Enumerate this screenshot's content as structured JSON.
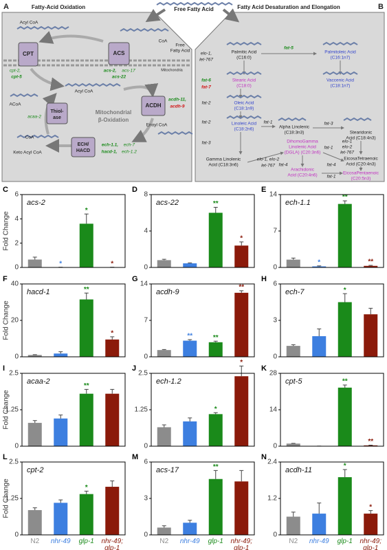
{
  "panel_a": {
    "letter": "A",
    "title": "Fatty-Acid Oxidation",
    "labels": [
      "Acyl CoA",
      "Free",
      "Fatty Acid",
      "CoA",
      "CPT",
      "ACS",
      "Mitochondria",
      "cpt-2,",
      "cpt-5",
      "acs-2,",
      "acs-17",
      "acs-22",
      "Acyl CoA",
      "ACoA",
      "ACDH",
      "acdh-11,",
      "acdh-9",
      "Thiol-",
      "ase",
      "acaa-2",
      "Mitochondrial",
      "β-Oxidation",
      "CoA",
      "Keto Acyl CoA",
      "ECH/",
      "HACD",
      "ech-1.1,",
      "ech-7",
      "hacd-1,",
      "ech-1.2",
      "Enoyl CoA"
    ]
  },
  "center_title": "Free Fatty Acid",
  "panel_b": {
    "letter": "B",
    "title": "Fatty Acid Desaturation and Elongation",
    "labels": [
      "elo-1,",
      "let-767",
      "Palmitic Acid",
      "(C16:0)",
      "fat-5",
      "Palmitoleic Acid",
      "(C16:1n7)",
      "fat-6",
      "fat-7",
      "Stearic Acid",
      "(C18:0)",
      "Vaccenic Acid",
      "(C18:1n7)",
      "fat-2",
      "Oleic Acid",
      "(C18:1n9)",
      "fat-2",
      "Linoleic Acid",
      "(C18:2n6)",
      "fat-1",
      "Alpha Linolenic",
      "(C18:3n3)",
      "fat-3",
      "Stearidonic",
      "Acid (C18:4n3)",
      "fat-3",
      "Gamma Linolenic",
      "Acid (C18:3n6)",
      "elo-1, elo-2",
      "let-767",
      "DihomoGamma",
      "Linolenic Acid",
      "(DGLA) (C20:3n6)",
      "fat-1",
      "elo-1",
      "elo-2",
      "let-767",
      "EicosaTetraenoic",
      "Acid (C20:4n3)",
      "fat-4",
      "fat-4",
      "Arachidonic",
      "Acid (C20:4n6)",
      "fat-1",
      "EicosaPentaenoic",
      "(C20:5n3)"
    ]
  },
  "chart_data": [
    {
      "type": "bar",
      "panel": "C",
      "title": "acs-2",
      "y_label": "Fold Change",
      "ylim": [
        0,
        6
      ],
      "yticks": [
        0,
        2,
        4,
        6
      ],
      "values": [
        0.65,
        0.02,
        3.6,
        0.02
      ],
      "errors": [
        0.2,
        0,
        0.8,
        0
      ],
      "stars": [
        null,
        "*",
        "*",
        "*"
      ],
      "colors": [
        "#8c8c8c",
        "#3d7fe0",
        "#1a8a1a",
        "#8b1a0a"
      ]
    },
    {
      "type": "bar",
      "panel": "D",
      "title": "acs-22",
      "ylim": [
        0,
        8
      ],
      "yticks": [
        0,
        4,
        8
      ],
      "values": [
        0.8,
        0.45,
        6.0,
        2.4
      ],
      "errors": [
        0.1,
        0.05,
        0.6,
        0.4
      ],
      "stars": [
        null,
        null,
        "**",
        "*"
      ],
      "colors": [
        "#8c8c8c",
        "#3d7fe0",
        "#1a8a1a",
        "#8b1a0a"
      ]
    },
    {
      "type": "bar",
      "panel": "E",
      "title": "ech-1.1",
      "ylim": [
        0,
        14
      ],
      "yticks": [
        0,
        7,
        14
      ],
      "values": [
        1.5,
        0.2,
        12.2,
        0.3
      ],
      "errors": [
        0.3,
        0.1,
        0.6,
        0.1
      ],
      "stars": [
        null,
        "*",
        "**",
        "**"
      ],
      "colors": [
        "#8c8c8c",
        "#3d7fe0",
        "#1a8a1a",
        "#8b1a0a"
      ]
    },
    {
      "type": "bar",
      "panel": "F",
      "title": "hacd-1",
      "y_label": "Fold Change",
      "ylim": [
        0,
        40
      ],
      "yticks": [
        0,
        20,
        40
      ],
      "values": [
        1.0,
        1.8,
        31.5,
        9.5
      ],
      "errors": [
        0.2,
        1.0,
        3.5,
        1.5
      ],
      "stars": [
        null,
        null,
        "**",
        "*"
      ],
      "colors": [
        "#8c8c8c",
        "#3d7fe0",
        "#1a8a1a",
        "#8b1a0a"
      ]
    },
    {
      "type": "bar",
      "panel": "G",
      "title": "acdh-9",
      "ylim": [
        0,
        14
      ],
      "yticks": [
        0,
        7,
        14
      ],
      "values": [
        1.3,
        3.1,
        2.8,
        12.3
      ],
      "errors": [
        0.1,
        0.2,
        0.2,
        0.4
      ],
      "stars": [
        null,
        "**",
        "**",
        "**"
      ],
      "colors": [
        "#8c8c8c",
        "#3d7fe0",
        "#1a8a1a",
        "#8b1a0a"
      ]
    },
    {
      "type": "bar",
      "panel": "H",
      "title": "ech-7",
      "ylim": [
        0,
        6
      ],
      "yticks": [
        0,
        3,
        6
      ],
      "values": [
        0.9,
        1.7,
        4.5,
        3.5
      ],
      "errors": [
        0.1,
        0.6,
        0.7,
        0.5
      ],
      "stars": [
        null,
        null,
        "*",
        null
      ],
      "colors": [
        "#8c8c8c",
        "#3d7fe0",
        "#1a8a1a",
        "#8b1a0a"
      ]
    },
    {
      "type": "bar",
      "panel": "I",
      "title": "acaa-2",
      "y_label": "Fold Change",
      "ylim": [
        0,
        2.5
      ],
      "yticks": [
        0,
        1.25,
        2.5
      ],
      "values": [
        0.8,
        0.95,
        1.8,
        1.8
      ],
      "errors": [
        0.08,
        0.12,
        0.15,
        0.15
      ],
      "stars": [
        null,
        null,
        "**",
        null
      ],
      "colors": [
        "#8c8c8c",
        "#3d7fe0",
        "#1a8a1a",
        "#8b1a0a"
      ]
    },
    {
      "type": "bar",
      "panel": "J",
      "title": "ech-1.2",
      "ylim": [
        0,
        2.5
      ],
      "yticks": [
        0,
        1.25,
        2.5
      ],
      "values": [
        0.65,
        0.85,
        1.1,
        2.4
      ],
      "errors": [
        0.08,
        0.12,
        0.05,
        0.35
      ],
      "stars": [
        null,
        null,
        "*",
        "*"
      ],
      "colors": [
        "#8c8c8c",
        "#3d7fe0",
        "#1a8a1a",
        "#8b1a0a"
      ]
    },
    {
      "type": "bar",
      "panel": "K",
      "title": "cpt-5",
      "ylim": [
        0,
        28
      ],
      "yticks": [
        0,
        14,
        28
      ],
      "values": [
        1.0,
        0.05,
        22.5,
        0.3
      ],
      "errors": [
        0.1,
        0,
        1.0,
        0.1
      ],
      "stars": [
        null,
        null,
        "**",
        "**"
      ],
      "colors": [
        "#8c8c8c",
        "#3d7fe0",
        "#1a8a1a",
        "#8b1a0a"
      ]
    },
    {
      "type": "bar",
      "panel": "L",
      "title": "cpt-2",
      "y_label": "Fold Change",
      "ylim": [
        0,
        2.5
      ],
      "yticks": [
        0,
        1.25,
        2.5
      ],
      "values": [
        0.85,
        1.1,
        1.4,
        1.65
      ],
      "errors": [
        0.08,
        0.1,
        0.1,
        0.2
      ],
      "stars": [
        null,
        null,
        "*",
        null
      ],
      "colors": [
        "#8c8c8c",
        "#3d7fe0",
        "#1a8a1a",
        "#8b1a0a"
      ],
      "categories": [
        "N2",
        "nhr-49",
        "glp-1",
        "nhr-49; glp-1"
      ]
    },
    {
      "type": "bar",
      "panel": "M",
      "title": "acs-17",
      "ylim": [
        0,
        6
      ],
      "yticks": [
        0,
        3,
        6
      ],
      "values": [
        0.6,
        1.0,
        4.6,
        4.4
      ],
      "errors": [
        0.15,
        0.2,
        0.7,
        0.9
      ],
      "stars": [
        null,
        null,
        "**",
        null
      ],
      "colors": [
        "#8c8c8c",
        "#3d7fe0",
        "#1a8a1a",
        "#8b1a0a"
      ],
      "categories": [
        "N2",
        "nhr-49",
        "glp-1",
        "nhr-49; glp-1"
      ]
    },
    {
      "type": "bar",
      "panel": "N",
      "title": "acdh-11",
      "ylim": [
        0,
        2.4
      ],
      "yticks": [
        0,
        1.2,
        2.4
      ],
      "values": [
        0.6,
        0.7,
        1.9,
        0.7
      ],
      "errors": [
        0.15,
        0.35,
        0.25,
        0.1
      ],
      "stars": [
        null,
        null,
        "*",
        "*"
      ],
      "colors": [
        "#8c8c8c",
        "#3d7fe0",
        "#1a8a1a",
        "#8b1a0a"
      ],
      "categories": [
        "N2",
        "nhr-49",
        "glp-1",
        "nhr-49; glp-1"
      ]
    }
  ]
}
